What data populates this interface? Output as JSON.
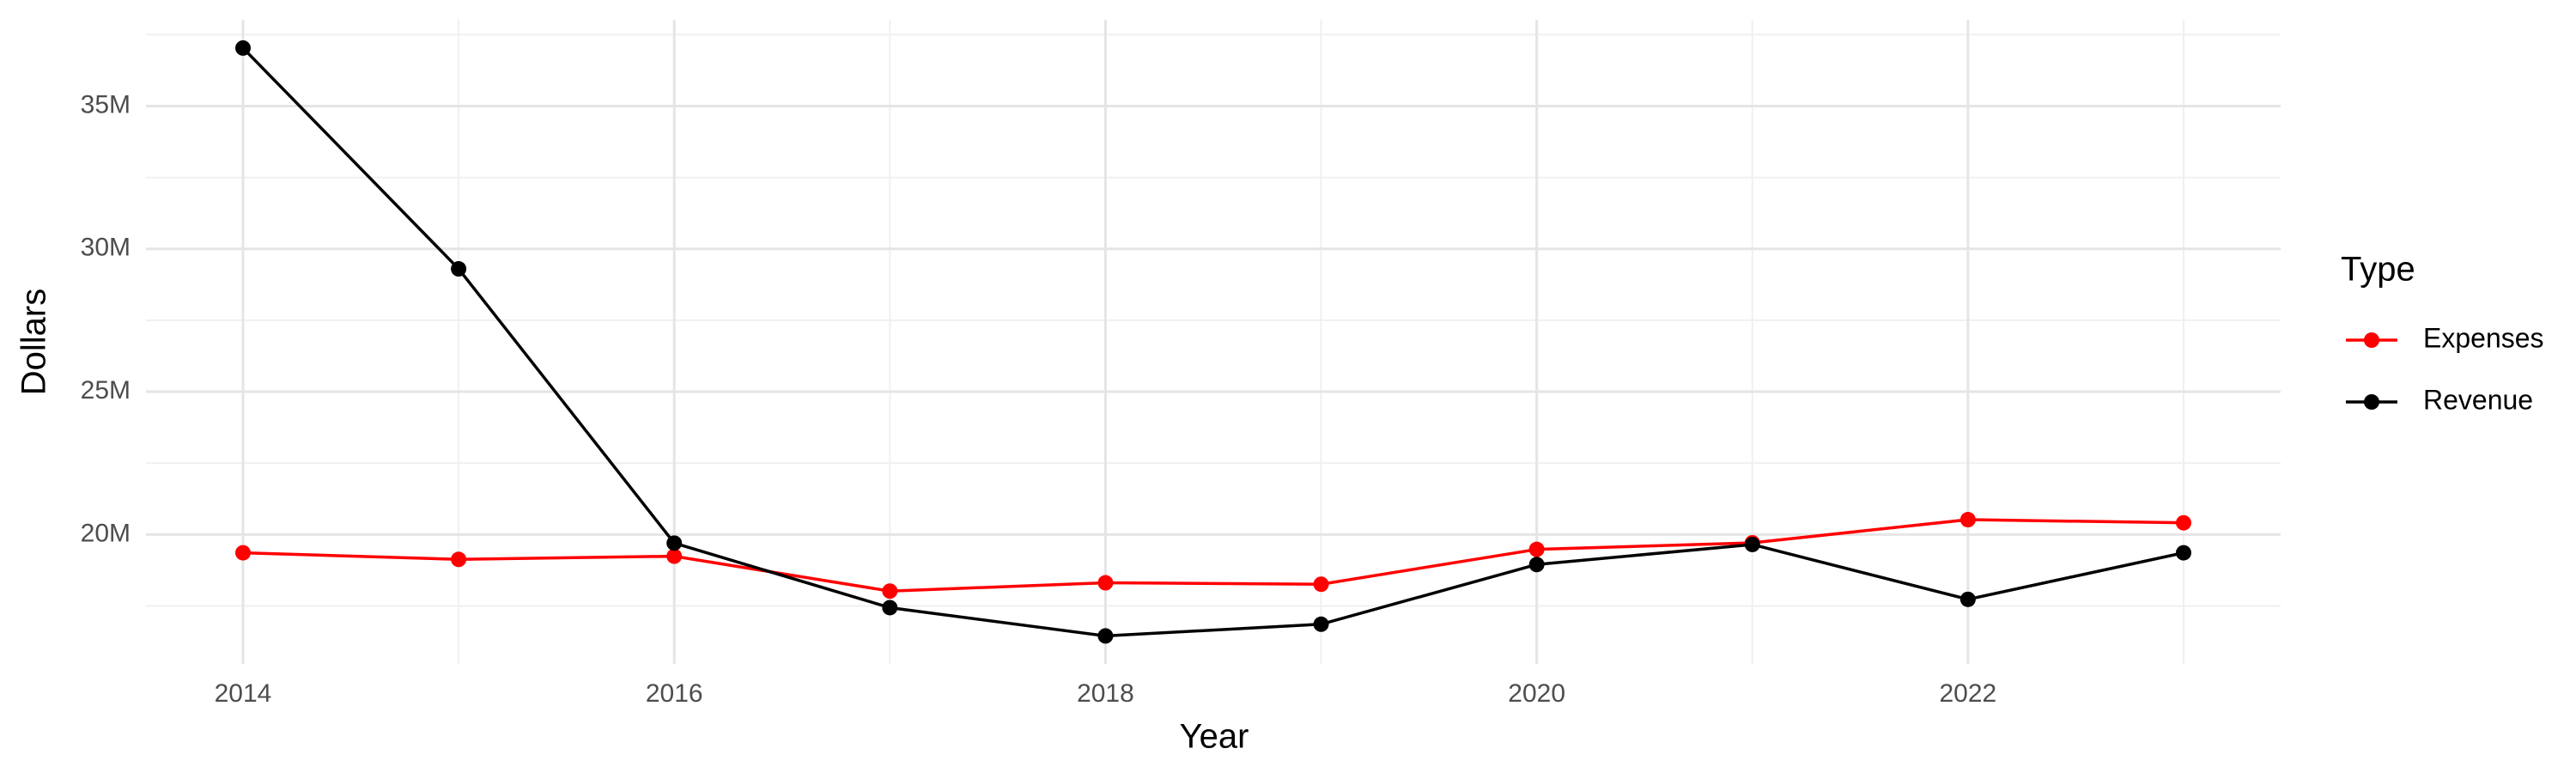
{
  "chart_data": {
    "type": "line",
    "x_label": "Year",
    "y_label": "Dollars",
    "legend_title": "Type",
    "x": [
      2014,
      2015,
      2016,
      2017,
      2018,
      2019,
      2020,
      2021,
      2022,
      2023
    ],
    "series": [
      {
        "name": "Expenses",
        "color": "#ff0000",
        "values": [
          19360000,
          19130000,
          19240000,
          18020000,
          18310000,
          18260000,
          19480000,
          19710000,
          20520000,
          20410000
        ]
      },
      {
        "name": "Revenue",
        "color": "#000000",
        "values": [
          37030000,
          29300000,
          19700000,
          17440000,
          16450000,
          16860000,
          18950000,
          19650000,
          17730000,
          19360000
        ]
      }
    ],
    "xlim": [
      2013.55,
      2023.45
    ],
    "xticks": [
      2014,
      2016,
      2018,
      2020,
      2022
    ],
    "ylim": [
      15470000,
      38020000
    ],
    "yticks": [
      {
        "value": 20000000,
        "label": "20M"
      },
      {
        "value": 25000000,
        "label": "25M"
      },
      {
        "value": 30000000,
        "label": "30M"
      },
      {
        "value": 35000000,
        "label": "35M"
      }
    ],
    "grid": true,
    "legend": "right"
  }
}
